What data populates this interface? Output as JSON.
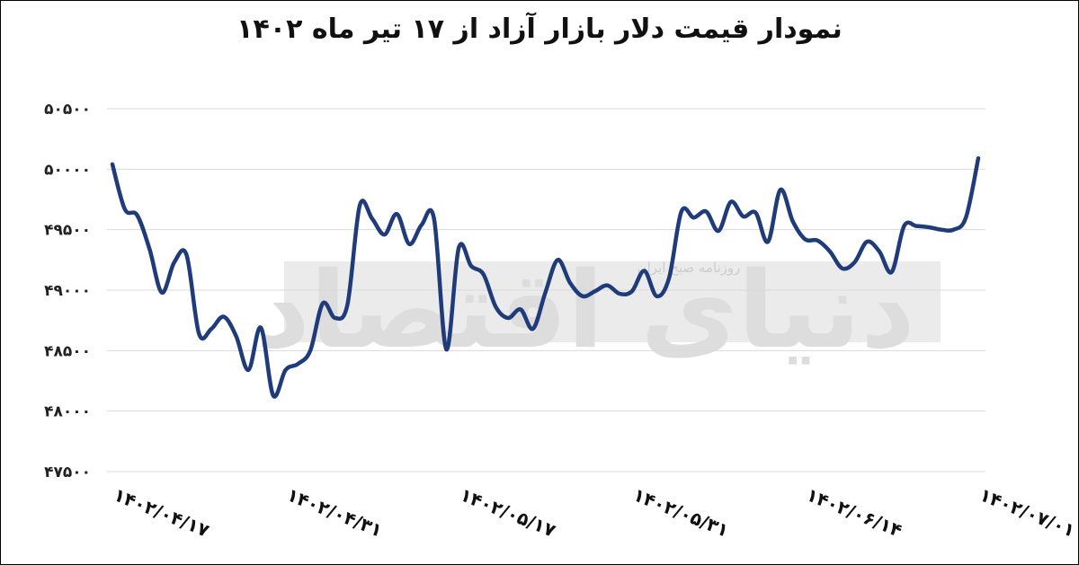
{
  "chart_data": {
    "type": "line",
    "title": "نمودار قیمت دلار بازار آزاد از ۱۷ تیر ماه ۱۴۰۲",
    "xlabel": "",
    "ylabel": "",
    "ylim": [
      47500,
      50500
    ],
    "yticks": [
      47500,
      48000,
      48500,
      49000,
      49500,
      50000,
      50500
    ],
    "ytick_labels": [
      "۴۷۵۰۰",
      "۴۸۰۰۰",
      "۴۸۵۰۰",
      "۴۹۰۰۰",
      "۴۹۵۰۰",
      "۵۰۰۰۰",
      "۵۰۵۰۰"
    ],
    "xtick_labels": [
      "۱۴۰۲/۰۴/۱۷",
      "۱۴۰۲/۰۴/۳۱",
      "۱۴۰۲/۰۵/۱۷",
      "۱۴۰۲/۰۵/۳۱",
      "۱۴۰۲/۰۶/۱۴",
      "۱۴۰۲/۰۷/۰۱"
    ],
    "xtick_index": [
      0,
      14,
      28,
      42,
      56,
      70
    ],
    "grid": true,
    "series_color": "#1f3b7a",
    "series": [
      {
        "values": [
          50040,
          49670,
          49620,
          49340,
          48980,
          49230,
          49290,
          48640,
          48680,
          48780,
          48620,
          48340,
          48690,
          48130,
          48340,
          48390,
          48500,
          48890,
          48770,
          48880,
          49700,
          49590,
          49460,
          49630,
          49380,
          49540,
          49590,
          48510,
          49350,
          49200,
          49130,
          48860,
          48770,
          48840,
          48680,
          48980,
          49250,
          49060,
          48950,
          48990,
          49040,
          48970,
          48990,
          49160,
          48950,
          49100,
          49650,
          49600,
          49650,
          49490,
          49730,
          49610,
          49640,
          49400,
          49830,
          49570,
          49420,
          49410,
          49320,
          49180,
          49230,
          49400,
          49320,
          49150,
          49530,
          49530,
          49520,
          49500,
          49500,
          49600,
          50090
        ]
      }
    ]
  },
  "watermark": {
    "main": "دنیای اقتصاد",
    "sub": "روزنامه صبح ایران"
  }
}
